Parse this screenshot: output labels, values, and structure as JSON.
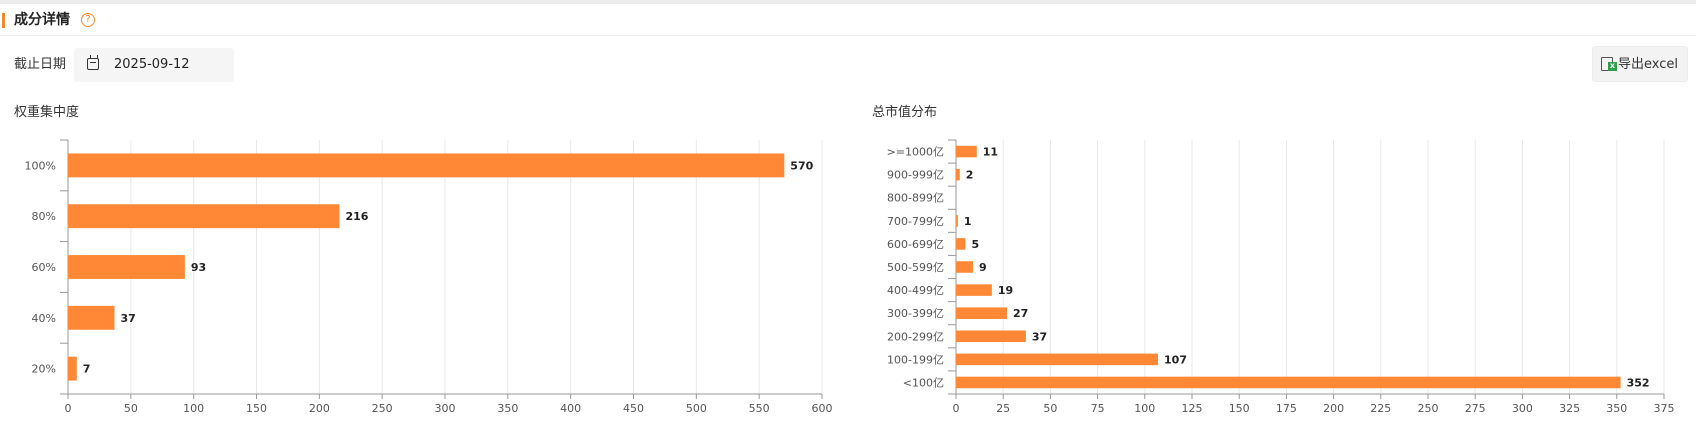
{
  "header": {
    "title": "成分详情",
    "help_glyph": "?"
  },
  "filter": {
    "date_label": "截止日期",
    "date_value": "2025-09-12"
  },
  "toolbar": {
    "export_label": "导出excel"
  },
  "chart_data": [
    {
      "type": "bar",
      "orientation": "horizontal",
      "title": "权重集中度",
      "categories": [
        "100%",
        "80%",
        "60%",
        "40%",
        "20%"
      ],
      "values": [
        570,
        216,
        93,
        37,
        7
      ],
      "xlim": [
        0,
        600
      ],
      "xticks": [
        0,
        50,
        100,
        150,
        200,
        250,
        300,
        350,
        400,
        450,
        500,
        550,
        600
      ],
      "grid": true,
      "color": "#ff8836"
    },
    {
      "type": "bar",
      "orientation": "horizontal",
      "title": "总市值分布",
      "categories": [
        ">=1000亿",
        "900-999亿",
        "800-899亿",
        "700-799亿",
        "600-699亿",
        "500-599亿",
        "400-499亿",
        "300-399亿",
        "200-299亿",
        "100-199亿",
        "<100亿"
      ],
      "values": [
        11,
        2,
        null,
        1,
        5,
        9,
        19,
        27,
        37,
        107,
        352
      ],
      "xlim": [
        0,
        375
      ],
      "xticks": [
        0,
        25,
        50,
        75,
        100,
        125,
        150,
        175,
        200,
        225,
        250,
        275,
        300,
        325,
        350,
        375
      ],
      "grid": true,
      "color": "#ff8836"
    }
  ]
}
